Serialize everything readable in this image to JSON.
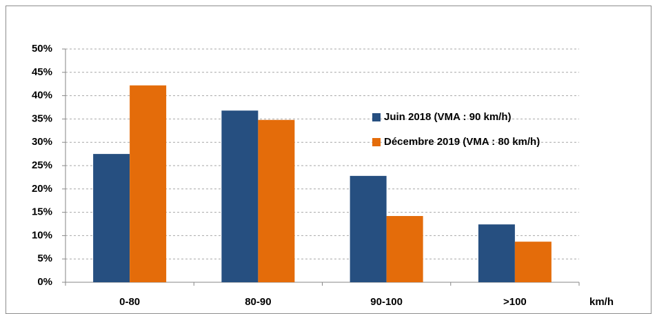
{
  "chart_data": {
    "type": "bar",
    "x_label": "km/h",
    "categories": [
      "0-80",
      "80-90",
      "90-100",
      ">100"
    ],
    "series": [
      {
        "name": "Juin 2018 (VMA : 90 km/h)",
        "color": "#264f80",
        "values": [
          27.5,
          36.8,
          22.8,
          12.4
        ]
      },
      {
        "name": "Décembre 2019 (VMA : 80 km/h)",
        "color": "#e46c0a",
        "values": [
          42.2,
          34.8,
          14.2,
          8.7
        ]
      }
    ],
    "ylim": [
      0,
      50
    ],
    "yticks": [
      {
        "value": 0,
        "label": "0%"
      },
      {
        "value": 5,
        "label": "5%"
      },
      {
        "value": 10,
        "label": "10%"
      },
      {
        "value": 15,
        "label": "15%"
      },
      {
        "value": 20,
        "label": "20%"
      },
      {
        "value": 25,
        "label": "25%"
      },
      {
        "value": 30,
        "label": "30%"
      },
      {
        "value": 35,
        "label": "35%"
      },
      {
        "value": 40,
        "label": "40%"
      },
      {
        "value": 45,
        "label": "45%"
      },
      {
        "value": 50,
        "label": "50%"
      }
    ],
    "grid": true
  }
}
